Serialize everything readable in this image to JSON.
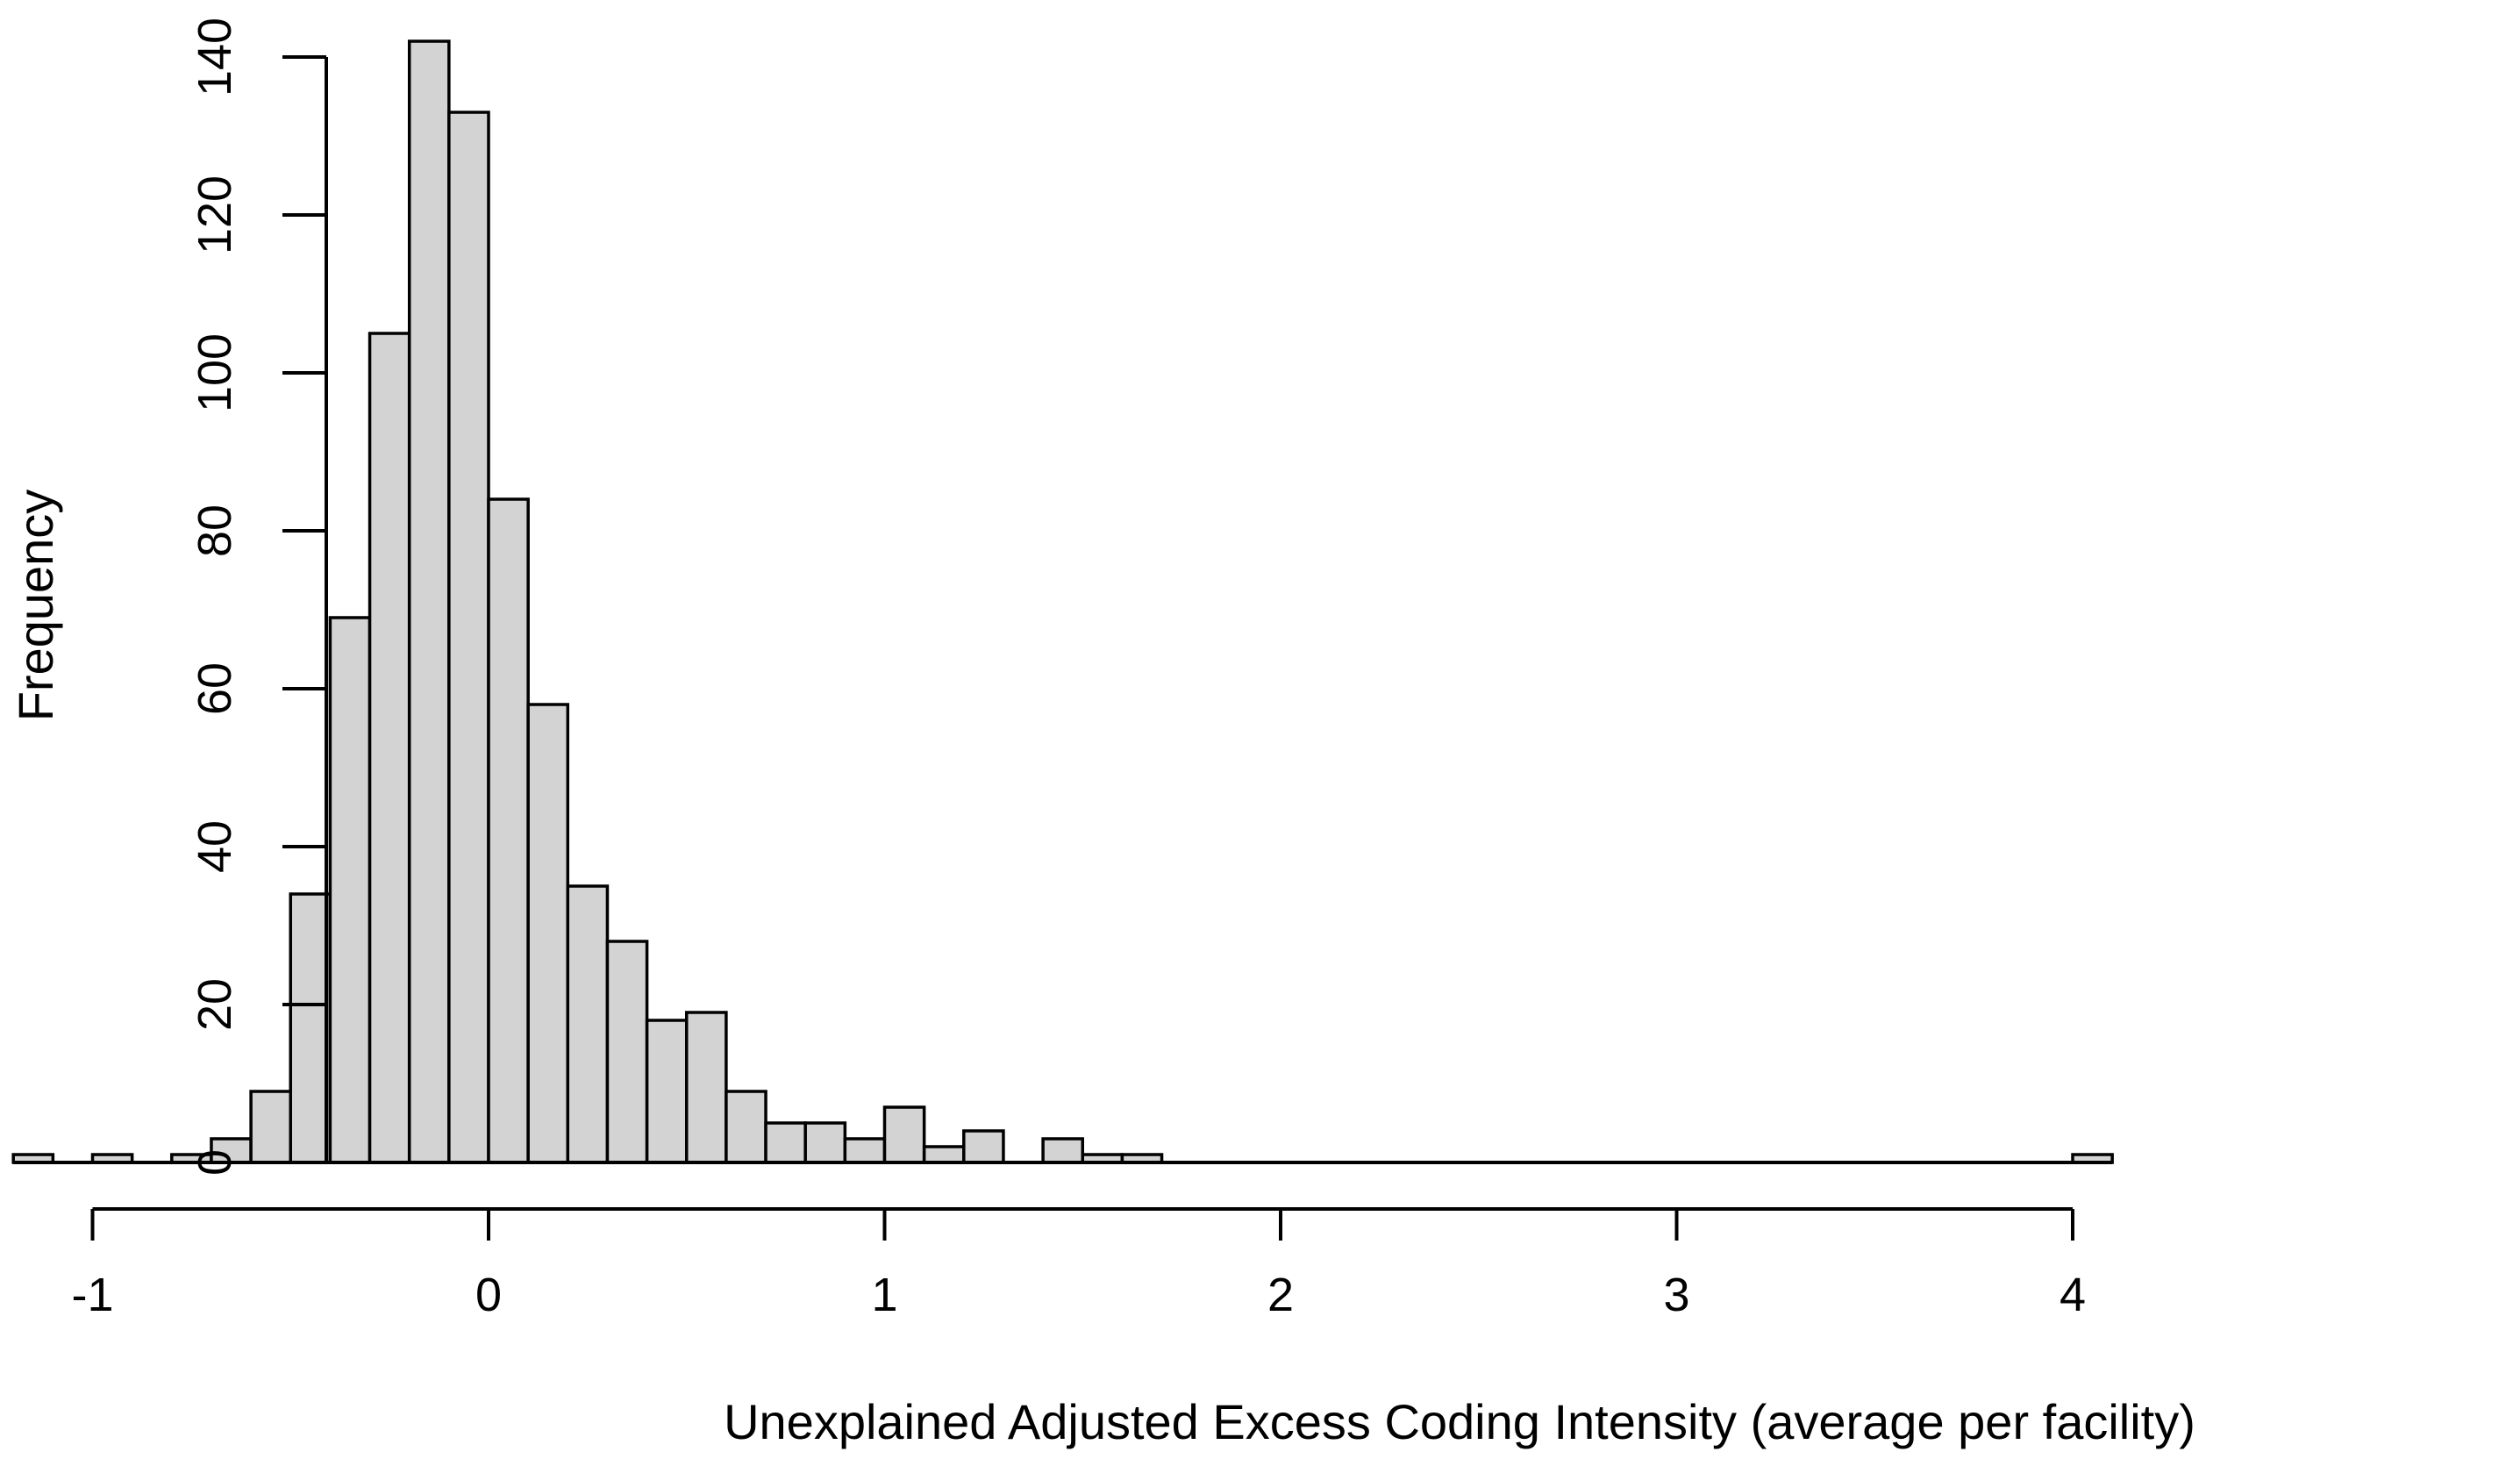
{
  "chart_data": {
    "type": "histogram",
    "title": "",
    "xlabel": "Unexplained Adjusted Excess Coding Intensity (average per facility)",
    "ylabel": "Frequency",
    "bin_width": 0.1,
    "xlim": [
      -1.2,
      4.1
    ],
    "ylim": [
      0,
      140
    ],
    "x_ticks": [
      -1,
      0,
      1,
      2,
      3,
      4
    ],
    "y_ticks": [
      0,
      20,
      40,
      60,
      80,
      100,
      120,
      140
    ],
    "bins": [
      {
        "start": -1.2,
        "count": 1
      },
      {
        "start": -1.1,
        "count": 0
      },
      {
        "start": -1.0,
        "count": 1
      },
      {
        "start": -0.9,
        "count": 0
      },
      {
        "start": -0.8,
        "count": 1
      },
      {
        "start": -0.7,
        "count": 3
      },
      {
        "start": -0.6,
        "count": 9
      },
      {
        "start": -0.5,
        "count": 34
      },
      {
        "start": -0.4,
        "count": 69
      },
      {
        "start": -0.3,
        "count": 105
      },
      {
        "start": -0.2,
        "count": 142
      },
      {
        "start": -0.1,
        "count": 133
      },
      {
        "start": 0.0,
        "count": 84
      },
      {
        "start": 0.1,
        "count": 58
      },
      {
        "start": 0.2,
        "count": 35
      },
      {
        "start": 0.3,
        "count": 28
      },
      {
        "start": 0.4,
        "count": 18
      },
      {
        "start": 0.5,
        "count": 19
      },
      {
        "start": 0.6,
        "count": 9
      },
      {
        "start": 0.7,
        "count": 5
      },
      {
        "start": 0.8,
        "count": 5
      },
      {
        "start": 0.9,
        "count": 3
      },
      {
        "start": 1.0,
        "count": 7
      },
      {
        "start": 1.1,
        "count": 2
      },
      {
        "start": 1.2,
        "count": 4
      },
      {
        "start": 1.3,
        "count": 0
      },
      {
        "start": 1.4,
        "count": 3
      },
      {
        "start": 1.5,
        "count": 1
      },
      {
        "start": 1.6,
        "count": 1
      },
      {
        "start": 4.0,
        "count": 1
      }
    ],
    "colors": {
      "bar_fill": "#d3d3d3",
      "bar_stroke": "#000000",
      "axis": "#000000",
      "background": "#ffffff"
    }
  }
}
